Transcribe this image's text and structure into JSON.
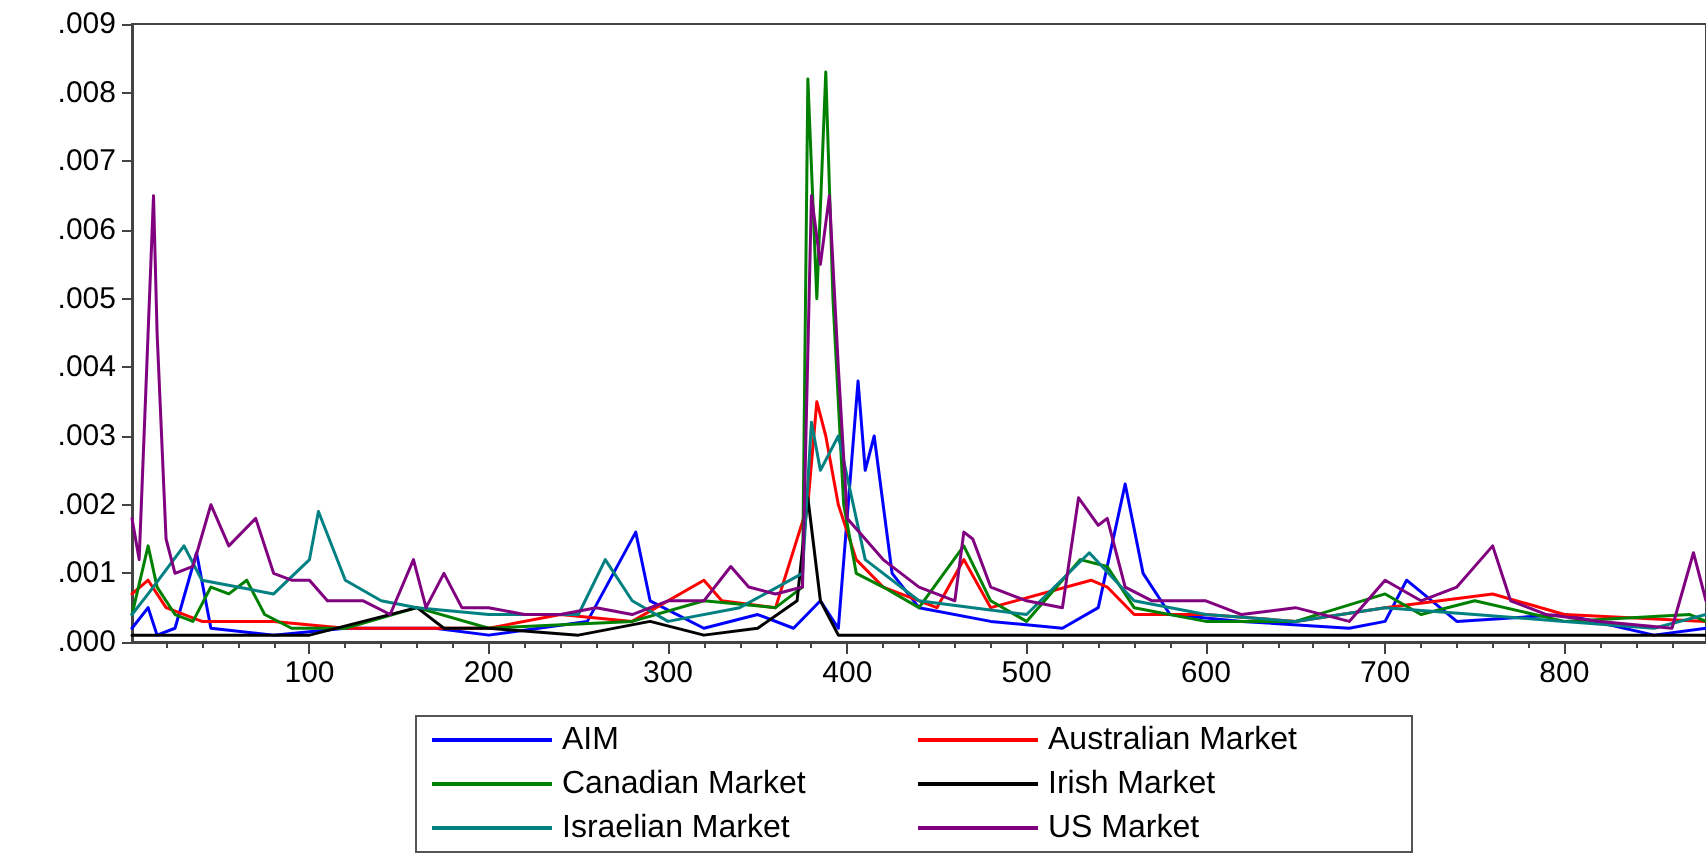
{
  "chart_data": {
    "type": "line",
    "xlim": [
      1,
      879
    ],
    "xticks": [
      100,
      200,
      300,
      400,
      500,
      600,
      700,
      800
    ],
    "ylim": [
      0,
      0.009
    ],
    "yticks": [
      {
        "value": 0,
        "label": ".000"
      },
      {
        "value": 0.001,
        "label": ".001"
      },
      {
        "value": 0.002,
        "label": ".002"
      },
      {
        "value": 0.003,
        "label": ".003"
      },
      {
        "value": 0.004,
        "label": ".004"
      },
      {
        "value": 0.005,
        "label": ".005"
      },
      {
        "value": 0.006,
        "label": ".006"
      },
      {
        "value": 0.007,
        "label": ".007"
      },
      {
        "value": 0.008,
        "label": ".008"
      },
      {
        "value": 0.009,
        "label": ".009"
      }
    ],
    "grid": false,
    "legend": "bottom",
    "marker": "none",
    "line_style": "solid",
    "series": [
      {
        "name": "AIM",
        "color": "#0000ff",
        "x": [
          1,
          10,
          15,
          25,
          37,
          45,
          80,
          120,
          170,
          200,
          255,
          282,
          290,
          320,
          350,
          370,
          385,
          395,
          406,
          410,
          415,
          425,
          440,
          480,
          520,
          540,
          555,
          565,
          580,
          620,
          680,
          700,
          712,
          740,
          800,
          850,
          879
        ],
        "values": [
          0.0002,
          0.0005,
          0.0001,
          0.0002,
          0.0013,
          0.0002,
          0.0001,
          0.0002,
          0.0002,
          0.0001,
          0.0003,
          0.0016,
          0.0006,
          0.0002,
          0.0004,
          0.0002,
          0.0006,
          0.0002,
          0.0038,
          0.0025,
          0.003,
          0.001,
          0.0005,
          0.0003,
          0.0002,
          0.0005,
          0.0023,
          0.001,
          0.0004,
          0.0003,
          0.0002,
          0.0003,
          0.0009,
          0.0003,
          0.0004,
          0.0001,
          0.0002
        ]
      },
      {
        "name": "Australian Market",
        "color": "#ff0000",
        "x": [
          1,
          10,
          20,
          40,
          80,
          120,
          200,
          240,
          280,
          320,
          330,
          360,
          378,
          383,
          388,
          395,
          405,
          420,
          450,
          465,
          480,
          536,
          545,
          560,
          600,
          650,
          700,
          760,
          800,
          879
        ],
        "values": [
          0.0007,
          0.0009,
          0.0005,
          0.0003,
          0.0003,
          0.0002,
          0.0002,
          0.0004,
          0.0003,
          0.0009,
          0.0006,
          0.0005,
          0.002,
          0.0035,
          0.003,
          0.002,
          0.0012,
          0.0008,
          0.0005,
          0.0012,
          0.0005,
          0.0009,
          0.0008,
          0.0004,
          0.0004,
          0.0003,
          0.0005,
          0.0007,
          0.0004,
          0.0003
        ]
      },
      {
        "name": "Canadian Market",
        "color": "#008000",
        "x": [
          1,
          10,
          15,
          25,
          35,
          45,
          55,
          65,
          75,
          90,
          120,
          160,
          200,
          280,
          320,
          360,
          375,
          378,
          383,
          388,
          392,
          398,
          405,
          420,
          440,
          465,
          480,
          500,
          530,
          545,
          560,
          600,
          650,
          700,
          720,
          750,
          800,
          870,
          879
        ],
        "values": [
          0.0004,
          0.0014,
          0.0008,
          0.0004,
          0.0003,
          0.0008,
          0.0007,
          0.0009,
          0.0004,
          0.0002,
          0.0002,
          0.0005,
          0.0002,
          0.0003,
          0.0006,
          0.0005,
          0.0008,
          0.0082,
          0.005,
          0.0083,
          0.005,
          0.002,
          0.001,
          0.0008,
          0.0005,
          0.0014,
          0.0006,
          0.0003,
          0.0012,
          0.0011,
          0.0005,
          0.0003,
          0.0003,
          0.0007,
          0.0004,
          0.0006,
          0.0003,
          0.0004,
          0.0003
        ]
      },
      {
        "name": "Irish Market",
        "color": "#000000",
        "x": [
          1,
          100,
          160,
          175,
          200,
          250,
          290,
          320,
          350,
          372,
          378,
          385,
          395,
          500,
          879
        ],
        "values": [
          0.0001,
          0.0001,
          0.0005,
          0.0002,
          0.0002,
          0.0001,
          0.0003,
          0.0001,
          0.0002,
          0.0006,
          0.0021,
          0.0006,
          0.0001,
          0.0001,
          0.0001
        ]
      },
      {
        "name": "Israelian Market",
        "color": "#008080",
        "x": [
          1,
          10,
          30,
          40,
          60,
          80,
          100,
          105,
          120,
          140,
          160,
          200,
          250,
          265,
          280,
          300,
          340,
          375,
          380,
          385,
          395,
          410,
          440,
          470,
          500,
          535,
          560,
          600,
          650,
          700,
          750,
          800,
          850,
          879
        ],
        "values": [
          0.0004,
          0.0007,
          0.0014,
          0.0009,
          0.0008,
          0.0007,
          0.0012,
          0.0019,
          0.0009,
          0.0006,
          0.0005,
          0.0004,
          0.0004,
          0.0012,
          0.0006,
          0.0003,
          0.0005,
          0.001,
          0.0032,
          0.0025,
          0.003,
          0.0012,
          0.0006,
          0.0005,
          0.0004,
          0.0013,
          0.0006,
          0.0004,
          0.0003,
          0.0005,
          0.0004,
          0.0003,
          0.0002,
          0.0004
        ]
      },
      {
        "name": "US Market",
        "color": "#800080",
        "x": [
          1,
          5,
          13,
          15,
          20,
          25,
          35,
          45,
          55,
          70,
          80,
          90,
          100,
          110,
          130,
          145,
          158,
          165,
          175,
          185,
          200,
          220,
          240,
          260,
          280,
          300,
          320,
          335,
          345,
          360,
          375,
          380,
          385,
          390,
          395,
          400,
          410,
          420,
          440,
          460,
          465,
          470,
          480,
          500,
          520,
          529,
          540,
          545,
          555,
          570,
          600,
          620,
          650,
          680,
          700,
          720,
          740,
          760,
          770,
          790,
          820,
          860,
          872,
          879
        ],
        "values": [
          0.0018,
          0.0012,
          0.0065,
          0.0045,
          0.0015,
          0.001,
          0.0011,
          0.002,
          0.0014,
          0.0018,
          0.001,
          0.0009,
          0.0009,
          0.0006,
          0.0006,
          0.0004,
          0.0012,
          0.0005,
          0.001,
          0.0005,
          0.0005,
          0.0004,
          0.0004,
          0.0005,
          0.0004,
          0.0006,
          0.0006,
          0.0011,
          0.0008,
          0.0007,
          0.0008,
          0.0065,
          0.0055,
          0.0065,
          0.004,
          0.0018,
          0.0015,
          0.0012,
          0.0008,
          0.0006,
          0.0016,
          0.0015,
          0.0008,
          0.0006,
          0.0005,
          0.0021,
          0.0017,
          0.0018,
          0.0008,
          0.0006,
          0.0006,
          0.0004,
          0.0005,
          0.0003,
          0.0009,
          0.0006,
          0.0008,
          0.0014,
          0.0006,
          0.0004,
          0.0003,
          0.0002,
          0.0013,
          0.0006
        ]
      }
    ]
  }
}
